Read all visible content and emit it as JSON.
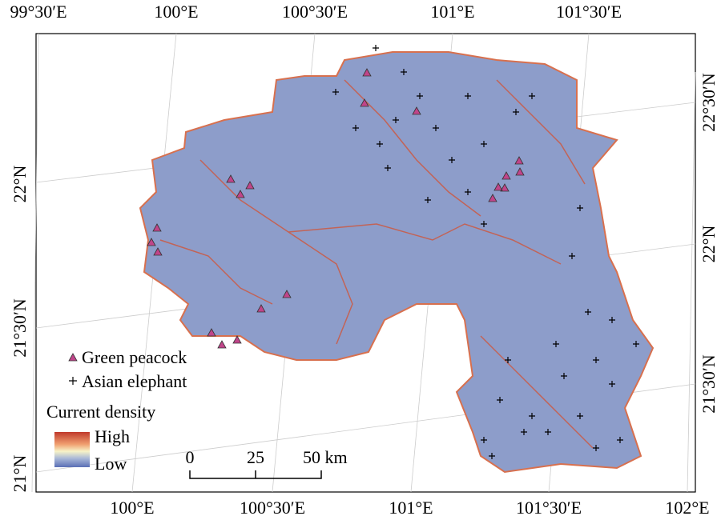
{
  "axes": {
    "top": [
      "99°30′E",
      "100°E",
      "100°30′E",
      "101°E",
      "101°30′E"
    ],
    "bottom": [
      "100°E",
      "100°30′E",
      "101°E",
      "101°30′E",
      "102°E"
    ],
    "left": [
      "22°N",
      "21°30′N",
      "21°N"
    ],
    "right": [
      "22°30′N",
      "22°N",
      "21°30′N"
    ]
  },
  "legend": {
    "species": [
      "Green peacock",
      "Asian elephant"
    ],
    "density_title": "Current density",
    "high": "High",
    "low": "Low"
  },
  "scale_bar": {
    "labels": [
      "0",
      "25",
      "50 km"
    ]
  }
}
